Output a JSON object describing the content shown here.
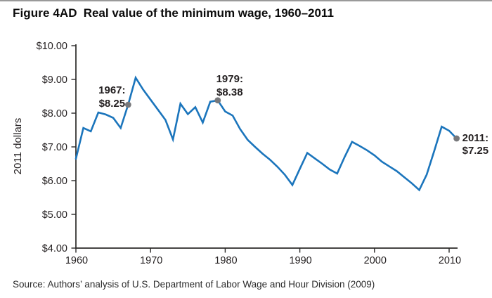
{
  "header": {
    "figure_label": "Figure 4AD",
    "title": "Real value of the minimum wage, 1960–2011"
  },
  "source": "Source: Authors’ analysis of U.S. Department of Labor Wage and Hour Division (2009)",
  "colors": {
    "line": "#1b75bc",
    "marker": "#77787b",
    "axis": "#2b2a29",
    "text": "#231f20"
  },
  "chart_data": {
    "type": "line",
    "title": "Real value of the minimum wage, 1960–2011",
    "xlabel": "",
    "ylabel": "2011 dollars",
    "xlim": [
      1960,
      2011
    ],
    "ylim": [
      4,
      10
    ],
    "grid": false,
    "legend": false,
    "x_ticks": [
      {
        "value": 1960,
        "label": "1960"
      },
      {
        "value": 1970,
        "label": "1970"
      },
      {
        "value": 1980,
        "label": "1980"
      },
      {
        "value": 1990,
        "label": "1990"
      },
      {
        "value": 2000,
        "label": "2000"
      },
      {
        "value": 2010,
        "label": "2010"
      }
    ],
    "y_ticks": [
      {
        "value": 4,
        "label": "$4.00"
      },
      {
        "value": 5,
        "label": "$5.00"
      },
      {
        "value": 6,
        "label": "$6.00"
      },
      {
        "value": 7,
        "label": "$7.00"
      },
      {
        "value": 8,
        "label": "$8.00"
      },
      {
        "value": 9,
        "label": "$9.00"
      },
      {
        "value": 10,
        "label": "$10.00"
      }
    ],
    "x": [
      1960,
      1961,
      1962,
      1963,
      1964,
      1965,
      1966,
      1967,
      1968,
      1969,
      1970,
      1971,
      1972,
      1973,
      1974,
      1975,
      1976,
      1977,
      1978,
      1979,
      1980,
      1981,
      1982,
      1983,
      1984,
      1985,
      1986,
      1987,
      1988,
      1989,
      1990,
      1991,
      1992,
      1993,
      1994,
      1995,
      1996,
      1997,
      1998,
      1999,
      2000,
      2001,
      2002,
      2003,
      2004,
      2005,
      2006,
      2007,
      2008,
      2009,
      2010,
      2011
    ],
    "series": [
      {
        "name": "Real minimum wage (2011 dollars)",
        "values": [
          6.65,
          7.56,
          7.46,
          8.02,
          7.96,
          7.86,
          7.56,
          8.25,
          9.05,
          8.7,
          8.4,
          8.1,
          7.8,
          7.22,
          8.28,
          7.97,
          8.18,
          7.72,
          8.34,
          8.38,
          8.05,
          7.93,
          7.53,
          7.21,
          7.0,
          6.8,
          6.62,
          6.41,
          6.17,
          5.87,
          6.35,
          6.82,
          6.66,
          6.5,
          6.33,
          6.21,
          6.7,
          7.15,
          7.03,
          6.9,
          6.75,
          6.56,
          6.42,
          6.28,
          6.1,
          5.92,
          5.72,
          6.18,
          6.88,
          7.6,
          7.48,
          7.25
        ]
      }
    ],
    "annotations": [
      {
        "x": 1967,
        "y": 8.25,
        "label_lines": [
          "1967:",
          "$8.25"
        ],
        "anchor": "middle",
        "dx": -23,
        "dy1": -16,
        "dy2": 3
      },
      {
        "x": 1979,
        "y": 8.38,
        "label_lines": [
          "1979:",
          "$8.38"
        ],
        "anchor": "middle",
        "dx": 17,
        "dy1": -26,
        "dy2": -7
      },
      {
        "x": 2011,
        "y": 7.25,
        "label_lines": [
          "2011:",
          "$7.25"
        ],
        "anchor": "start",
        "dx": 8,
        "dy1": 4,
        "dy2": 22
      }
    ]
  }
}
